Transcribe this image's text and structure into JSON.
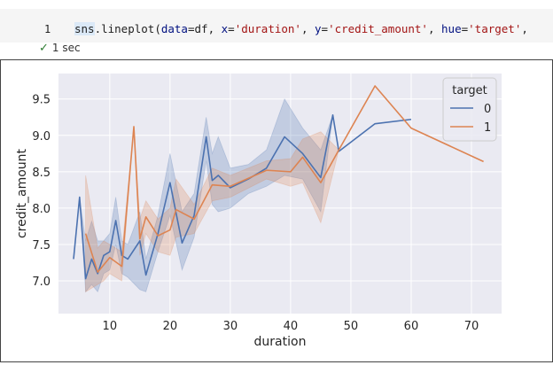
{
  "cell": {
    "line_number": "1",
    "code_tokens": [
      {
        "text": "sns",
        "cls": "tok-ident"
      },
      {
        "text": ".",
        "cls": ""
      },
      {
        "text": "lineplot",
        "cls": "tok-fn"
      },
      {
        "text": "(",
        "cls": ""
      },
      {
        "text": "data",
        "cls": "tok-kw"
      },
      {
        "text": "=",
        "cls": ""
      },
      {
        "text": "df",
        "cls": ""
      },
      {
        "text": ", ",
        "cls": ""
      },
      {
        "text": "x",
        "cls": "tok-kw"
      },
      {
        "text": "=",
        "cls": ""
      },
      {
        "text": "'duration'",
        "cls": "tok-str"
      },
      {
        "text": ", ",
        "cls": ""
      },
      {
        "text": "y",
        "cls": "tok-kw"
      },
      {
        "text": "=",
        "cls": ""
      },
      {
        "text": "'credit_amount'",
        "cls": "tok-str"
      },
      {
        "text": ", ",
        "cls": ""
      },
      {
        "text": "hue",
        "cls": "tok-kw"
      },
      {
        "text": "=",
        "cls": ""
      },
      {
        "text": "'target'",
        "cls": "tok-str"
      },
      {
        "text": ", ",
        "cls": ""
      }
    ],
    "status_text": "1 sec"
  },
  "chart_data": {
    "type": "line",
    "title": "",
    "xlabel": "duration",
    "ylabel": "credit_amount",
    "xlim": [
      1.5,
      75
    ],
    "ylim": [
      6.55,
      9.85
    ],
    "xticks": [
      10,
      20,
      30,
      40,
      50,
      60,
      70
    ],
    "yticks": [
      7.0,
      7.5,
      8.0,
      8.5,
      9.0,
      9.5
    ],
    "ytick_labels": [
      "7.0",
      "7.5",
      "8.0",
      "8.5",
      "9.0",
      "9.5"
    ],
    "grid": true,
    "background": "#eaeaf2",
    "legend": {
      "title": "target",
      "placement": "upper right"
    },
    "series": [
      {
        "name": "0",
        "color": "#4c72b0",
        "x": [
          4,
          5,
          6,
          7,
          8,
          9,
          10,
          11,
          12,
          13,
          15,
          16,
          18,
          20,
          22,
          24,
          26,
          27,
          28,
          30,
          33,
          36,
          39,
          42,
          45,
          47,
          48,
          54,
          60
        ],
        "y": [
          7.3,
          8.15,
          7.03,
          7.3,
          7.1,
          7.35,
          7.4,
          7.83,
          7.35,
          7.3,
          7.55,
          7.08,
          7.65,
          8.35,
          7.52,
          7.9,
          8.98,
          8.38,
          8.45,
          8.28,
          8.4,
          8.55,
          8.98,
          8.75,
          8.42,
          9.28,
          8.78,
          9.16,
          9.22
        ],
        "ci_upper": [
          7.3,
          8.15,
          7.55,
          7.82,
          7.55,
          7.55,
          7.65,
          8.15,
          7.55,
          7.5,
          7.95,
          7.3,
          7.9,
          8.75,
          7.95,
          8.2,
          9.25,
          8.75,
          8.98,
          8.55,
          8.6,
          8.8,
          9.5,
          9.1,
          8.8,
          9.28,
          8.78,
          9.16,
          9.22
        ],
        "ci_lower": [
          7.3,
          8.15,
          6.85,
          6.95,
          6.85,
          7.1,
          7.15,
          7.5,
          7.1,
          7.05,
          6.88,
          6.85,
          7.4,
          7.9,
          7.15,
          7.6,
          8.65,
          8.05,
          7.95,
          8.0,
          8.2,
          8.3,
          8.45,
          8.4,
          7.95,
          9.28,
          8.78,
          9.16,
          9.22
        ]
      },
      {
        "name": "1",
        "color": "#dd8452",
        "x": [
          6,
          8,
          9,
          10,
          12,
          14,
          15,
          16,
          18,
          20,
          21,
          24,
          27,
          30,
          36,
          40,
          42,
          45,
          48,
          54,
          60,
          72
        ],
        "y": [
          7.65,
          7.12,
          7.22,
          7.32,
          7.2,
          9.12,
          7.58,
          7.88,
          7.62,
          7.7,
          7.98,
          7.85,
          8.32,
          8.3,
          8.52,
          8.5,
          8.7,
          8.35,
          8.8,
          9.68,
          9.1,
          8.64
        ],
        "ci_upper": [
          8.45,
          7.45,
          7.55,
          7.5,
          7.4,
          9.12,
          7.85,
          8.1,
          7.85,
          8.0,
          8.4,
          8.05,
          8.55,
          8.45,
          8.65,
          8.68,
          8.95,
          9.05,
          8.8,
          9.68,
          9.1,
          8.64
        ],
        "ci_lower": [
          6.85,
          6.95,
          7.0,
          7.1,
          7.0,
          9.12,
          7.35,
          7.65,
          7.4,
          7.35,
          7.6,
          7.65,
          8.1,
          8.15,
          8.4,
          8.3,
          8.35,
          7.8,
          8.8,
          9.68,
          9.1,
          8.64
        ]
      }
    ]
  }
}
